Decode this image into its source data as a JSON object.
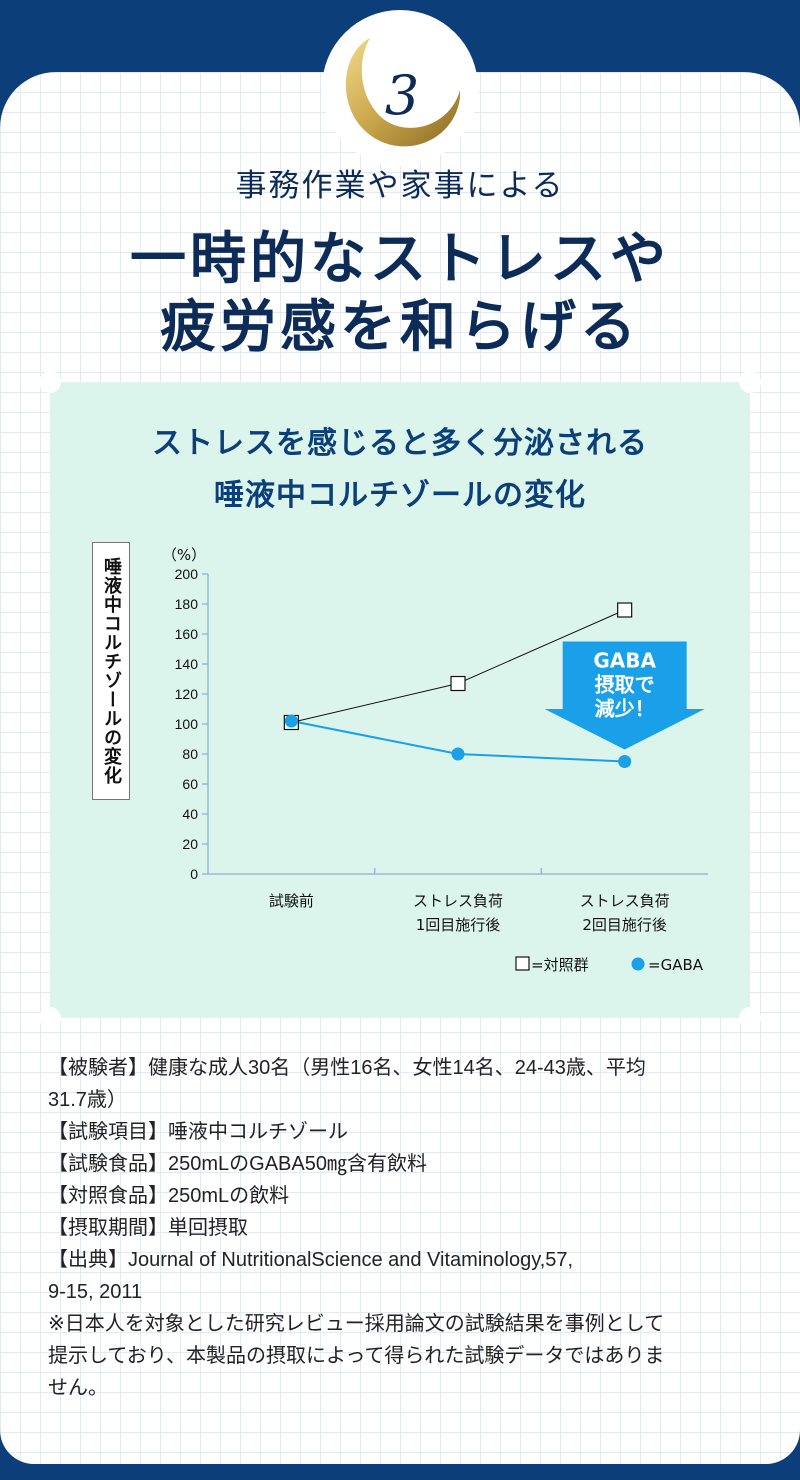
{
  "badge": {
    "number": "3"
  },
  "headline": {
    "subtitle": "事務作業や家事による",
    "line1": "一時的なストレスや",
    "line2": "疲労感を和らげる"
  },
  "chart_data": {
    "type": "line",
    "title_line1": "ストレスを感じると多く分泌される",
    "title_line2": "唾液中コルチゾールの変化",
    "ylabel": "唾液中コルチゾールの変化",
    "yunit": "（%）",
    "ylim": [
      0,
      200
    ],
    "yticks": [
      0,
      20,
      40,
      60,
      80,
      100,
      120,
      140,
      160,
      180,
      200
    ],
    "categories": [
      [
        "試験前"
      ],
      [
        "ストレス負荷",
        "1回目施行後"
      ],
      [
        "ストレス負荷",
        "2回目施行後"
      ]
    ],
    "series": [
      {
        "name": "=対照群",
        "marker": "square",
        "color": "#111111",
        "values": [
          101,
          127,
          176
        ]
      },
      {
        "name": "=GABA",
        "marker": "circle",
        "color": "#1aa0e8",
        "values": [
          102,
          80,
          75
        ]
      }
    ],
    "callout": [
      "GABA",
      "摂取で",
      "減少！"
    ],
    "callout_color": "#1aa0e8",
    "legend_position": "bottom-right",
    "grid": false
  },
  "info": {
    "lines": [
      "【被験者】健康な成人30名（男性16名、女性14名、24-43歳、平均",
      "31.7歳）",
      "【試験項目】唾液中コルチゾール",
      "【試験食品】250mLのGABA50㎎含有飲料",
      "【対照食品】250mLの飲料",
      "【摂取期間】単回摂取",
      "【出典】Journal of NutritionalScience and Vitaminology,57,",
      "9-15, 2011",
      "※日本人を対象とした研究レビュー採用論文の試験結果を事例として",
      "提示しており、本製品の摂取によって得られた試験データではありま",
      "せん。"
    ]
  },
  "colors": {
    "navy": "#0c3f7a",
    "mint": "#dcf5ec",
    "gold": "#c9a54a",
    "gaba_blue": "#1aa0e8"
  }
}
